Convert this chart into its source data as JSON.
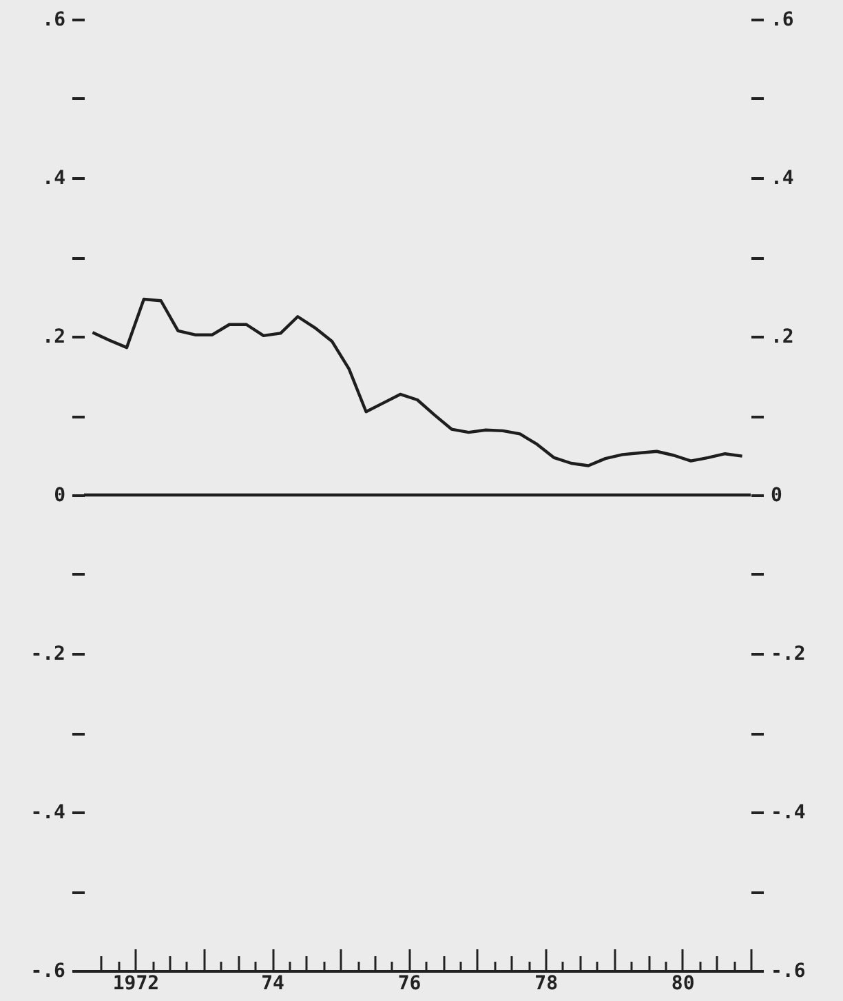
{
  "chart_data": {
    "type": "line",
    "color": "#1e1e1e",
    "line_style": "solid",
    "x": [
      1971.375,
      1971.625,
      1971.875,
      1972.125,
      1972.375,
      1972.625,
      1972.875,
      1973.125,
      1973.375,
      1973.625,
      1973.875,
      1974.125,
      1974.375,
      1974.625,
      1974.875,
      1975.125,
      1975.375,
      1975.625,
      1975.875,
      1976.125,
      1976.375,
      1976.625,
      1976.875,
      1977.125,
      1977.375,
      1977.625,
      1977.875,
      1978.125,
      1978.375,
      1978.625,
      1978.875,
      1979.125,
      1979.375,
      1979.625,
      1979.875,
      1980.125,
      1980.375,
      1980.625,
      1980.875
    ],
    "values": [
      0.205,
      0.195,
      0.186,
      0.247,
      0.245,
      0.207,
      0.202,
      0.202,
      0.215,
      0.215,
      0.201,
      0.204,
      0.225,
      0.211,
      0.194,
      0.159,
      0.105,
      0.116,
      0.127,
      0.12,
      0.101,
      0.083,
      0.079,
      0.082,
      0.081,
      0.077,
      0.064,
      0.047,
      0.04,
      0.037,
      0.046,
      0.051,
      0.053,
      0.055,
      0.05,
      0.043,
      0.047,
      0.052,
      0.049
    ],
    "xlim": [
      1971.25,
      1981
    ],
    "xticks": [
      {
        "value": 1971.5,
        "label": null
      },
      {
        "value": 1971.75,
        "label": null
      },
      {
        "value": 1972,
        "label": "1972"
      },
      {
        "value": 1972.25,
        "label": null
      },
      {
        "value": 1972.5,
        "label": null
      },
      {
        "value": 1972.75,
        "label": null
      },
      {
        "value": 1973,
        "label": null
      },
      {
        "value": 1973.25,
        "label": null
      },
      {
        "value": 1973.5,
        "label": null
      },
      {
        "value": 1973.75,
        "label": null
      },
      {
        "value": 1974,
        "label": "74"
      },
      {
        "value": 1974.25,
        "label": null
      },
      {
        "value": 1974.5,
        "label": null
      },
      {
        "value": 1974.75,
        "label": null
      },
      {
        "value": 1975,
        "label": null
      },
      {
        "value": 1975.25,
        "label": null
      },
      {
        "value": 1975.5,
        "label": null
      },
      {
        "value": 1975.75,
        "label": null
      },
      {
        "value": 1976,
        "label": "76"
      },
      {
        "value": 1976.25,
        "label": null
      },
      {
        "value": 1976.5,
        "label": null
      },
      {
        "value": 1976.75,
        "label": null
      },
      {
        "value": 1977,
        "label": null
      },
      {
        "value": 1977.25,
        "label": null
      },
      {
        "value": 1977.5,
        "label": null
      },
      {
        "value": 1977.75,
        "label": null
      },
      {
        "value": 1978,
        "label": "78"
      },
      {
        "value": 1978.25,
        "label": null
      },
      {
        "value": 1978.5,
        "label": null
      },
      {
        "value": 1978.75,
        "label": null
      },
      {
        "value": 1979,
        "label": null
      },
      {
        "value": 1979.25,
        "label": null
      },
      {
        "value": 1979.5,
        "label": null
      },
      {
        "value": 1979.75,
        "label": null
      },
      {
        "value": 1980,
        "label": "80"
      },
      {
        "value": 1980.25,
        "label": null
      },
      {
        "value": 1980.5,
        "label": null
      },
      {
        "value": 1980.75,
        "label": null
      },
      {
        "value": 1981,
        "label": null
      }
    ],
    "ylim": [
      -0.6,
      0.6
    ],
    "yticks": [
      {
        "value": -0.6,
        "label": "-.6"
      },
      {
        "value": -0.5,
        "label": null
      },
      {
        "value": -0.4,
        "label": "-.4"
      },
      {
        "value": -0.3,
        "label": null
      },
      {
        "value": -0.2,
        "label": "-.2"
      },
      {
        "value": -0.1,
        "label": null
      },
      {
        "value": 0,
        "label": "0"
      },
      {
        "value": 0.1,
        "label": null
      },
      {
        "value": 0.2,
        "label": ".2"
      },
      {
        "value": 0.3,
        "label": null
      },
      {
        "value": 0.4,
        "label": ".4"
      },
      {
        "value": 0.5,
        "label": null
      },
      {
        "value": 0.6,
        "label": ".6"
      }
    ],
    "y2lim": [
      -0.6,
      0.6
    ],
    "y2ticks": [
      {
        "value": -0.6,
        "label": "-.6"
      },
      {
        "value": -0.5,
        "label": null
      },
      {
        "value": -0.4,
        "label": "-.4"
      },
      {
        "value": -0.3,
        "label": null
      },
      {
        "value": -0.2,
        "label": "-.2"
      },
      {
        "value": -0.1,
        "label": null
      },
      {
        "value": 0,
        "label": "0"
      },
      {
        "value": 0.1,
        "label": null
      },
      {
        "value": 0.2,
        "label": ".2"
      },
      {
        "value": 0.3,
        "label": null
      },
      {
        "value": 0.4,
        "label": ".4"
      },
      {
        "value": 0.5,
        "label": null
      },
      {
        "value": 0.6,
        "label": ".6"
      }
    ],
    "ref_lines": [
      {
        "axis": "y",
        "value": 0
      }
    ]
  }
}
